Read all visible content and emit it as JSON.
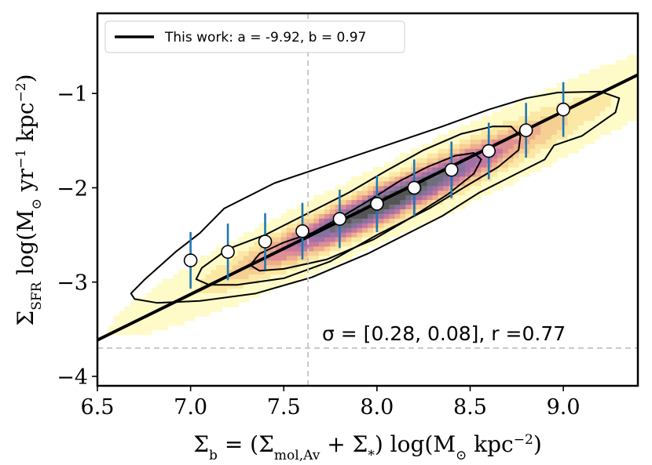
{
  "chart_data": {
    "type": "scatter",
    "xlim": [
      6.5,
      9.4
    ],
    "ylim": [
      -4.1,
      -0.15
    ],
    "x_ticks": [
      6.5,
      7.0,
      7.5,
      8.0,
      8.5,
      9.0
    ],
    "x_tick_labels": [
      "6.5",
      "7.0",
      "7.5",
      "8.0",
      "8.5",
      "9.0"
    ],
    "y_ticks": [
      -1,
      -2,
      -3,
      -4
    ],
    "y_tick_labels": [
      "−1",
      "−2",
      "−3",
      "−4"
    ],
    "xlabel": {
      "sigma": "Σ",
      "sub_b": "b",
      "eq": " = (Σ",
      "sub_mol": "mol,Av",
      "plus": " + Σ",
      "sub_star": "*",
      "close": ") log(M",
      "sub_sun": "⊙",
      "kpc": " kpc",
      "exp": "−2",
      "end": ")"
    },
    "ylabel": {
      "sigma": "Σ",
      "sub_sfr": "SFR",
      "log": " log(M",
      "sub_sun": "⊙",
      "yr": " yr",
      "exp1": "−1",
      "kpc": " kpc",
      "exp2": "−2",
      "end": ")"
    },
    "legend": {
      "label": "This work: a = -9.92, b = 0.97",
      "placement": "top-left"
    },
    "annotation": "σ = [0.28, 0.08], r =0.77",
    "fit_line": {
      "a": -9.92,
      "b": 0.97
    },
    "reference_lines": {
      "vertical_x": 7.63,
      "horizontal_y": -3.7
    },
    "binned_points": {
      "x": [
        7.0,
        7.2,
        7.4,
        7.6,
        7.8,
        8.0,
        8.2,
        8.4,
        8.6,
        8.8,
        9.0
      ],
      "y": [
        -2.77,
        -2.68,
        -2.57,
        -2.46,
        -2.33,
        -2.17,
        -2.0,
        -1.81,
        -1.61,
        -1.39,
        -1.17
      ],
      "yerr": [
        0.3,
        0.3,
        0.3,
        0.3,
        0.31,
        0.3,
        0.3,
        0.3,
        0.3,
        0.29,
        0.29
      ]
    },
    "density": {
      "colormap": [
        "#fefbc8",
        "#fbe8a4",
        "#f6cf93",
        "#eeae8e",
        "#de8f93",
        "#c4799f",
        "#a171a6",
        "#86729e",
        "#6f6f7b",
        "#555555"
      ],
      "center_x": 8.05,
      "center_y": -2.15,
      "cov": [
        [
          0.36,
          0.33
        ],
        [
          0.33,
          0.33
        ]
      ]
    },
    "contours": [
      {
        "level": "outer",
        "points": [
          [
            6.68,
            -3.12
          ],
          [
            6.75,
            -2.98
          ],
          [
            6.92,
            -2.68
          ],
          [
            7.05,
            -2.48
          ],
          [
            7.18,
            -2.22
          ],
          [
            7.45,
            -1.95
          ],
          [
            7.75,
            -1.75
          ],
          [
            8.05,
            -1.55
          ],
          [
            8.35,
            -1.35
          ],
          [
            8.6,
            -1.17
          ],
          [
            8.8,
            -1.05
          ],
          [
            8.97,
            -0.99
          ],
          [
            9.2,
            -0.98
          ],
          [
            9.3,
            -1.05
          ],
          [
            9.28,
            -1.2
          ],
          [
            9.1,
            -1.45
          ],
          [
            8.95,
            -1.55
          ],
          [
            8.9,
            -1.7
          ],
          [
            8.75,
            -1.85
          ],
          [
            8.55,
            -2.05
          ],
          [
            8.35,
            -2.3
          ],
          [
            8.15,
            -2.5
          ],
          [
            7.95,
            -2.7
          ],
          [
            7.65,
            -2.95
          ],
          [
            7.35,
            -3.12
          ],
          [
            7.05,
            -3.2
          ],
          [
            6.82,
            -3.22
          ],
          [
            6.7,
            -3.18
          ]
        ]
      },
      {
        "level": "middle",
        "points": [
          [
            7.03,
            -2.97
          ],
          [
            7.06,
            -2.85
          ],
          [
            7.2,
            -2.65
          ],
          [
            7.4,
            -2.5
          ],
          [
            7.6,
            -2.3
          ],
          [
            7.85,
            -2.05
          ],
          [
            8.05,
            -1.82
          ],
          [
            8.25,
            -1.6
          ],
          [
            8.45,
            -1.43
          ],
          [
            8.62,
            -1.35
          ],
          [
            8.72,
            -1.35
          ],
          [
            8.77,
            -1.45
          ],
          [
            8.76,
            -1.6
          ],
          [
            8.65,
            -1.78
          ],
          [
            8.48,
            -1.98
          ],
          [
            8.28,
            -2.22
          ],
          [
            8.0,
            -2.5
          ],
          [
            7.75,
            -2.78
          ],
          [
            7.5,
            -2.96
          ],
          [
            7.25,
            -3.03
          ],
          [
            7.1,
            -3.03
          ]
        ]
      },
      {
        "level": "inner",
        "points": [
          [
            7.32,
            -2.82
          ],
          [
            7.37,
            -2.7
          ],
          [
            7.5,
            -2.58
          ],
          [
            7.65,
            -2.48
          ],
          [
            7.8,
            -2.32
          ],
          [
            7.97,
            -2.12
          ],
          [
            8.12,
            -1.93
          ],
          [
            8.27,
            -1.78
          ],
          [
            8.42,
            -1.66
          ],
          [
            8.52,
            -1.63
          ],
          [
            8.56,
            -1.7
          ],
          [
            8.52,
            -1.85
          ],
          [
            8.38,
            -2.07
          ],
          [
            8.18,
            -2.32
          ],
          [
            7.98,
            -2.55
          ],
          [
            7.73,
            -2.76
          ],
          [
            7.5,
            -2.86
          ],
          [
            7.37,
            -2.88
          ]
        ]
      }
    ],
    "colors": {
      "fit": "#000000",
      "errorbar": "#1f77b4",
      "marker_face": "#ffffff",
      "marker_edge": "#000000",
      "reference": "#c8c8c8",
      "contour": "#000000"
    }
  }
}
